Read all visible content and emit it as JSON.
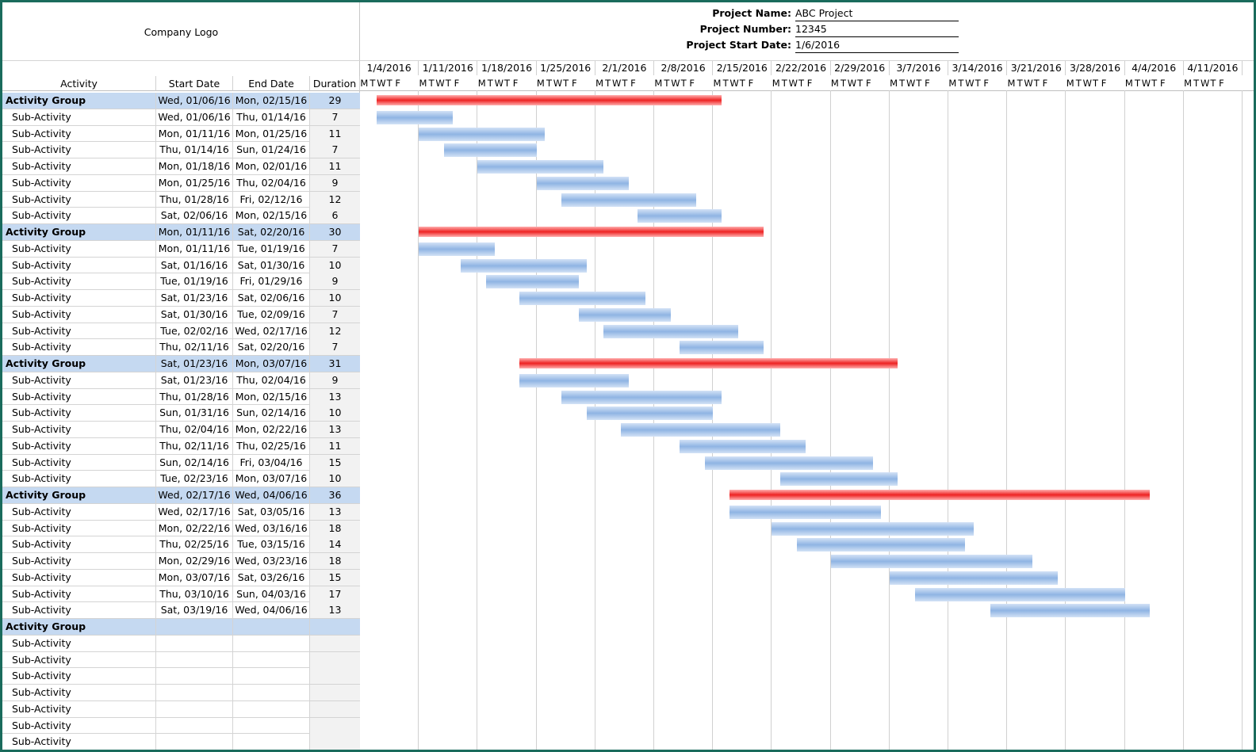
{
  "logo": "Company Logo",
  "project": {
    "name_label": "Project Name:",
    "name_value": "ABC Project",
    "number_label": "Project Number:",
    "number_value": "12345",
    "start_label": "Project Start Date:",
    "start_value": "1/6/2016"
  },
  "columns": {
    "activity": "Activity",
    "start": "Start Date",
    "end": "End Date",
    "duration": "Duration"
  },
  "weeks": [
    "1/4/2016",
    "1/11/2016",
    "1/18/2016",
    "1/25/2016",
    "2/1/2016",
    "2/8/2016",
    "2/15/2016",
    "2/22/2016",
    "2/29/2016",
    "3/7/2016",
    "3/14/2016",
    "3/21/2016",
    "3/28/2016",
    "4/4/2016",
    "4/11/2016"
  ],
  "weekday_letters": [
    "M",
    "T",
    "W",
    "T",
    "F"
  ],
  "timeline_start": "1/4/2016",
  "colors": {
    "group_fill": "#c5d9f1",
    "group_bar": "#ee2222",
    "sub_bar": "#8fb4e3",
    "frame": "#1a6b5c"
  },
  "rows": [
    {
      "type": "group",
      "name": "Activity Group",
      "start": "Wed, 01/06/16",
      "end": "Mon, 02/15/16",
      "duration": "29",
      "s": "2016-01-06",
      "e": "2016-02-15"
    },
    {
      "type": "sub",
      "name": "Sub-Activity",
      "start": "Wed, 01/06/16",
      "end": "Thu, 01/14/16",
      "duration": "7",
      "s": "2016-01-06",
      "e": "2016-01-14"
    },
    {
      "type": "sub",
      "name": "Sub-Activity",
      "start": "Mon, 01/11/16",
      "end": "Mon, 01/25/16",
      "duration": "11",
      "s": "2016-01-11",
      "e": "2016-01-25"
    },
    {
      "type": "sub",
      "name": "Sub-Activity",
      "start": "Thu, 01/14/16",
      "end": "Sun, 01/24/16",
      "duration": "7",
      "s": "2016-01-14",
      "e": "2016-01-24"
    },
    {
      "type": "sub",
      "name": "Sub-Activity",
      "start": "Mon, 01/18/16",
      "end": "Mon, 02/01/16",
      "duration": "11",
      "s": "2016-01-18",
      "e": "2016-02-01"
    },
    {
      "type": "sub",
      "name": "Sub-Activity",
      "start": "Mon, 01/25/16",
      "end": "Thu, 02/04/16",
      "duration": "9",
      "s": "2016-01-25",
      "e": "2016-02-04"
    },
    {
      "type": "sub",
      "name": "Sub-Activity",
      "start": "Thu, 01/28/16",
      "end": "Fri, 02/12/16",
      "duration": "12",
      "s": "2016-01-28",
      "e": "2016-02-12"
    },
    {
      "type": "sub",
      "name": "Sub-Activity",
      "start": "Sat, 02/06/16",
      "end": "Mon, 02/15/16",
      "duration": "6",
      "s": "2016-02-06",
      "e": "2016-02-15"
    },
    {
      "type": "group",
      "name": "Activity Group",
      "start": "Mon, 01/11/16",
      "end": "Sat, 02/20/16",
      "duration": "30",
      "s": "2016-01-11",
      "e": "2016-02-20"
    },
    {
      "type": "sub",
      "name": "Sub-Activity",
      "start": "Mon, 01/11/16",
      "end": "Tue, 01/19/16",
      "duration": "7",
      "s": "2016-01-11",
      "e": "2016-01-19"
    },
    {
      "type": "sub",
      "name": "Sub-Activity",
      "start": "Sat, 01/16/16",
      "end": "Sat, 01/30/16",
      "duration": "10",
      "s": "2016-01-16",
      "e": "2016-01-30"
    },
    {
      "type": "sub",
      "name": "Sub-Activity",
      "start": "Tue, 01/19/16",
      "end": "Fri, 01/29/16",
      "duration": "9",
      "s": "2016-01-19",
      "e": "2016-01-29"
    },
    {
      "type": "sub",
      "name": "Sub-Activity",
      "start": "Sat, 01/23/16",
      "end": "Sat, 02/06/16",
      "duration": "10",
      "s": "2016-01-23",
      "e": "2016-02-06"
    },
    {
      "type": "sub",
      "name": "Sub-Activity",
      "start": "Sat, 01/30/16",
      "end": "Tue, 02/09/16",
      "duration": "7",
      "s": "2016-01-30",
      "e": "2016-02-09"
    },
    {
      "type": "sub",
      "name": "Sub-Activity",
      "start": "Tue, 02/02/16",
      "end": "Wed, 02/17/16",
      "duration": "12",
      "s": "2016-02-02",
      "e": "2016-02-17"
    },
    {
      "type": "sub",
      "name": "Sub-Activity",
      "start": "Thu, 02/11/16",
      "end": "Sat, 02/20/16",
      "duration": "7",
      "s": "2016-02-11",
      "e": "2016-02-20"
    },
    {
      "type": "group",
      "name": "Activity Group",
      "start": "Sat, 01/23/16",
      "end": "Mon, 03/07/16",
      "duration": "31",
      "s": "2016-01-23",
      "e": "2016-03-07"
    },
    {
      "type": "sub",
      "name": "Sub-Activity",
      "start": "Sat, 01/23/16",
      "end": "Thu, 02/04/16",
      "duration": "9",
      "s": "2016-01-23",
      "e": "2016-02-04"
    },
    {
      "type": "sub",
      "name": "Sub-Activity",
      "start": "Thu, 01/28/16",
      "end": "Mon, 02/15/16",
      "duration": "13",
      "s": "2016-01-28",
      "e": "2016-02-15"
    },
    {
      "type": "sub",
      "name": "Sub-Activity",
      "start": "Sun, 01/31/16",
      "end": "Sun, 02/14/16",
      "duration": "10",
      "s": "2016-01-31",
      "e": "2016-02-14"
    },
    {
      "type": "sub",
      "name": "Sub-Activity",
      "start": "Thu, 02/04/16",
      "end": "Mon, 02/22/16",
      "duration": "13",
      "s": "2016-02-04",
      "e": "2016-02-22"
    },
    {
      "type": "sub",
      "name": "Sub-Activity",
      "start": "Thu, 02/11/16",
      "end": "Thu, 02/25/16",
      "duration": "11",
      "s": "2016-02-11",
      "e": "2016-02-25"
    },
    {
      "type": "sub",
      "name": "Sub-Activity",
      "start": "Sun, 02/14/16",
      "end": "Fri, 03/04/16",
      "duration": "15",
      "s": "2016-02-14",
      "e": "2016-03-04"
    },
    {
      "type": "sub",
      "name": "Sub-Activity",
      "start": "Tue, 02/23/16",
      "end": "Mon, 03/07/16",
      "duration": "10",
      "s": "2016-02-23",
      "e": "2016-03-07"
    },
    {
      "type": "group",
      "name": "Activity Group",
      "start": "Wed, 02/17/16",
      "end": "Wed, 04/06/16",
      "duration": "36",
      "s": "2016-02-17",
      "e": "2016-04-06"
    },
    {
      "type": "sub",
      "name": "Sub-Activity",
      "start": "Wed, 02/17/16",
      "end": "Sat, 03/05/16",
      "duration": "13",
      "s": "2016-02-17",
      "e": "2016-03-05"
    },
    {
      "type": "sub",
      "name": "Sub-Activity",
      "start": "Mon, 02/22/16",
      "end": "Wed, 03/16/16",
      "duration": "18",
      "s": "2016-02-22",
      "e": "2016-03-16"
    },
    {
      "type": "sub",
      "name": "Sub-Activity",
      "start": "Thu, 02/25/16",
      "end": "Tue, 03/15/16",
      "duration": "14",
      "s": "2016-02-25",
      "e": "2016-03-15"
    },
    {
      "type": "sub",
      "name": "Sub-Activity",
      "start": "Mon, 02/29/16",
      "end": "Wed, 03/23/16",
      "duration": "18",
      "s": "2016-02-29",
      "e": "2016-03-23"
    },
    {
      "type": "sub",
      "name": "Sub-Activity",
      "start": "Mon, 03/07/16",
      "end": "Sat, 03/26/16",
      "duration": "15",
      "s": "2016-03-07",
      "e": "2016-03-26"
    },
    {
      "type": "sub",
      "name": "Sub-Activity",
      "start": "Thu, 03/10/16",
      "end": "Sun, 04/03/16",
      "duration": "17",
      "s": "2016-03-10",
      "e": "2016-04-03"
    },
    {
      "type": "sub",
      "name": "Sub-Activity",
      "start": "Sat, 03/19/16",
      "end": "Wed, 04/06/16",
      "duration": "13",
      "s": "2016-03-19",
      "e": "2016-04-06"
    },
    {
      "type": "group",
      "name": "Activity Group",
      "start": "",
      "end": "",
      "duration": ""
    },
    {
      "type": "sub",
      "name": "Sub-Activity",
      "start": "",
      "end": "",
      "duration": ""
    },
    {
      "type": "sub",
      "name": "Sub-Activity",
      "start": "",
      "end": "",
      "duration": ""
    },
    {
      "type": "sub",
      "name": "Sub-Activity",
      "start": "",
      "end": "",
      "duration": ""
    },
    {
      "type": "sub",
      "name": "Sub-Activity",
      "start": "",
      "end": "",
      "duration": ""
    },
    {
      "type": "sub",
      "name": "Sub-Activity",
      "start": "",
      "end": "",
      "duration": ""
    },
    {
      "type": "sub",
      "name": "Sub-Activity",
      "start": "",
      "end": "",
      "duration": ""
    },
    {
      "type": "sub",
      "name": "Sub-Activity",
      "start": "",
      "end": "",
      "duration": ""
    }
  ]
}
